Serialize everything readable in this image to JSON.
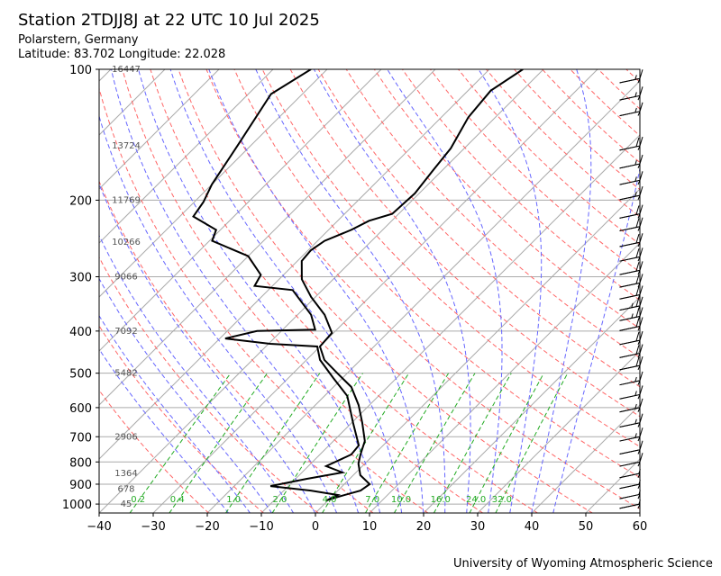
{
  "header": {
    "title": "Station 2TDJJ8J at 22 UTC 10 Jul 2025",
    "location": "Polarstern, Germany",
    "coords": "Latitude: 83.702 Longitude: 22.028"
  },
  "footer": {
    "credit": "University of Wyoming Atmospheric Science"
  },
  "chart_data": {
    "type": "line",
    "title": "Station 2TDJJ8J at 22 UTC 10 Jul 2025",
    "xlabel": "",
    "ylabel": "",
    "xlim": [
      -40,
      60
    ],
    "ylim": [
      1050,
      100
    ],
    "xticks": [
      -40,
      -30,
      -20,
      -10,
      0,
      10,
      20,
      30,
      40,
      50,
      60
    ],
    "yticks": [
      100,
      200,
      300,
      400,
      500,
      600,
      700,
      800,
      900,
      1000
    ],
    "grid": true,
    "series": [
      {
        "name": "Temperature",
        "color": "#000000",
        "points": [
          [
            981,
            -0.3
          ],
          [
            962,
            1.2
          ],
          [
            931,
            4.2
          ],
          [
            900,
            4.7
          ],
          [
            858,
            1.3
          ],
          [
            807,
            -1.2
          ],
          [
            769,
            -2.5
          ],
          [
            716,
            -4.2
          ],
          [
            651,
            -8
          ],
          [
            592,
            -12
          ],
          [
            538,
            -16.7
          ],
          [
            501,
            -21.7
          ],
          [
            466,
            -26.7
          ],
          [
            434,
            -30
          ],
          [
            404,
            -30.3
          ],
          [
            367,
            -35
          ],
          [
            334,
            -40.8
          ],
          [
            304,
            -45.8
          ],
          [
            276,
            -49.2
          ],
          [
            261,
            -49.5
          ],
          [
            248,
            -48.7
          ],
          [
            234,
            -45.8
          ],
          [
            223,
            -44.2
          ],
          [
            215,
            -41.2
          ],
          [
            193,
            -40.8
          ],
          [
            171,
            -41.7
          ],
          [
            152,
            -42.5
          ],
          [
            129,
            -45
          ],
          [
            112,
            -45.8
          ],
          [
            100,
            -43.8
          ]
        ]
      },
      {
        "name": "Dewpoint",
        "color": "#000000",
        "points": [
          [
            981,
            -0.3
          ],
          [
            953,
            0.8
          ],
          [
            931,
            -5
          ],
          [
            909,
            -13.3
          ],
          [
            875,
            -8
          ],
          [
            846,
            -2.5
          ],
          [
            818,
            -6.7
          ],
          [
            769,
            -4.2
          ],
          [
            733,
            -4.5
          ],
          [
            651,
            -9.7
          ],
          [
            564,
            -15.8
          ],
          [
            513,
            -21.7
          ],
          [
            466,
            -27.5
          ],
          [
            434,
            -30.5
          ],
          [
            428,
            -39.7
          ],
          [
            416,
            -49
          ],
          [
            400,
            -44.5
          ],
          [
            397,
            -34
          ],
          [
            367,
            -37.5
          ],
          [
            322,
            -45.5
          ],
          [
            315,
            -53.3
          ],
          [
            297,
            -54.2
          ],
          [
            269,
            -60
          ],
          [
            248,
            -69.5
          ],
          [
            234,
            -70.8
          ],
          [
            218,
            -77.5
          ],
          [
            202,
            -78.3
          ],
          [
            184,
            -80
          ],
          [
            149,
            -82.5
          ],
          [
            114,
            -85.8
          ],
          [
            100,
            -83
          ]
        ]
      }
    ],
    "height_labels": [
      {
        "p": 100,
        "z": "16447"
      },
      {
        "p": 150,
        "z": "13724"
      },
      {
        "p": 200,
        "z": "11769"
      },
      {
        "p": 250,
        "z": "10266"
      },
      {
        "p": 300,
        "z": "9066"
      },
      {
        "p": 400,
        "z": "7092"
      },
      {
        "p": 500,
        "z": "5482"
      },
      {
        "p": 700,
        "z": "2906"
      },
      {
        "p": 850,
        "z": "1364"
      },
      {
        "p": 925,
        "z": "678"
      },
      {
        "p": 1000,
        "z": "45"
      }
    ],
    "mixing_ratios": [
      "0.2",
      "0.4",
      "1.0",
      "2.0",
      "4.0",
      "7.0",
      "10.0",
      "16.0",
      "24.0",
      "32.0"
    ],
    "wind_barbs": [
      {
        "p": 105,
        "spd": 15
      },
      {
        "p": 115,
        "spd": 15
      },
      {
        "p": 125,
        "spd": 15
      },
      {
        "p": 150,
        "spd": 20
      },
      {
        "p": 165,
        "spd": 15
      },
      {
        "p": 180,
        "spd": 15
      },
      {
        "p": 195,
        "spd": 15
      },
      {
        "p": 215,
        "spd": 20
      },
      {
        "p": 230,
        "spd": 20
      },
      {
        "p": 250,
        "spd": 20
      },
      {
        "p": 270,
        "spd": 20
      },
      {
        "p": 290,
        "spd": 20
      },
      {
        "p": 310,
        "spd": 20
      },
      {
        "p": 330,
        "spd": 20
      },
      {
        "p": 350,
        "spd": 25
      },
      {
        "p": 370,
        "spd": 25
      },
      {
        "p": 390,
        "spd": 20
      },
      {
        "p": 420,
        "spd": 20
      },
      {
        "p": 450,
        "spd": 20
      },
      {
        "p": 480,
        "spd": 20
      },
      {
        "p": 520,
        "spd": 15
      },
      {
        "p": 560,
        "spd": 15
      },
      {
        "p": 600,
        "spd": 15
      },
      {
        "p": 650,
        "spd": 15
      },
      {
        "p": 700,
        "spd": 15
      },
      {
        "p": 750,
        "spd": 10
      },
      {
        "p": 800,
        "spd": 10
      },
      {
        "p": 850,
        "spd": 5
      },
      {
        "p": 900,
        "spd": 5
      },
      {
        "p": 950,
        "spd": 5
      },
      {
        "p": 1000,
        "spd": 5
      }
    ]
  }
}
